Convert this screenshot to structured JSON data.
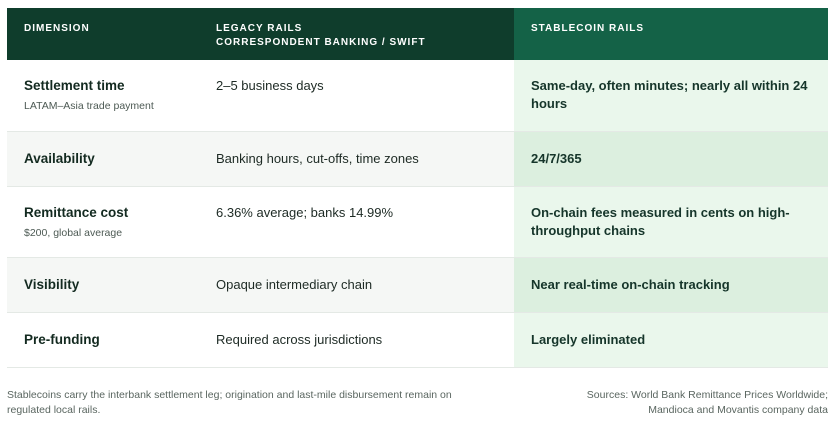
{
  "header": {
    "dimension": "DIMENSION",
    "legacy": {
      "title": "LEGACY RAILS",
      "subtitle": "CORRESPONDENT BANKING / SWIFT"
    },
    "stablecoin": "STABLECOIN RAILS"
  },
  "rows": [
    {
      "dimension": "Settlement time",
      "note": "LATAM–Asia trade payment",
      "legacy": "2–5 business days",
      "stablecoin": "Same-day, often minutes; nearly all within 24 hours"
    },
    {
      "dimension": "Availability",
      "legacy": "Banking hours, cut-offs, time zones",
      "stablecoin": "24/7/365"
    },
    {
      "dimension": "Remittance cost",
      "note": "$200, global average",
      "legacy": "6.36% average; banks 14.99%",
      "stablecoin": "On-chain fees measured in cents on high-throughput chains"
    },
    {
      "dimension": "Visibility",
      "legacy": "Opaque intermediary chain",
      "stablecoin": "Near real-time on-chain tracking"
    },
    {
      "dimension": "Pre-funding",
      "legacy": "Required across jurisdictions",
      "stablecoin": "Largely eliminated"
    }
  ],
  "footer": {
    "note": "Stablecoins carry the interbank settlement leg; origination and last-mile disbursement remain on regulated local rails.",
    "sources": [
      "Sources: World Bank Remittance Prices Worldwide;",
      "Mandioca and Movantis company data"
    ]
  }
}
